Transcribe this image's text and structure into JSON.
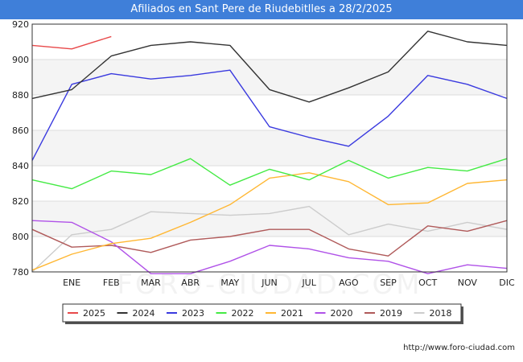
{
  "title": "Afiliados en Sant Pere de Riudebitlles a 28/2/2025",
  "source": "http://www.foro-ciudad.com",
  "watermark": "FORO-CIUDAD.COM",
  "chart_data": {
    "type": "line",
    "categories": [
      "",
      "ENE",
      "FEB",
      "MAR",
      "ABR",
      "MAY",
      "JUN",
      "JUL",
      "AGO",
      "SEP",
      "OCT",
      "NOV",
      "DIC"
    ],
    "ylim": [
      780,
      920
    ],
    "yticks": [
      780,
      800,
      820,
      840,
      860,
      880,
      900,
      920
    ],
    "grid": true,
    "legend_position": "bottom",
    "series": [
      {
        "name": "2025",
        "color": "#e8494a",
        "values": [
          908,
          906,
          913,
          null,
          null,
          null,
          null,
          null,
          null,
          null,
          null,
          null,
          null
        ]
      },
      {
        "name": "2024",
        "color": "#333333",
        "values": [
          878,
          883,
          902,
          908,
          910,
          908,
          883,
          876,
          884,
          893,
          916,
          910,
          908
        ]
      },
      {
        "name": "2023",
        "color": "#3a3adf",
        "values": [
          843,
          886,
          892,
          889,
          891,
          894,
          862,
          856,
          851,
          868,
          891,
          886,
          878
        ]
      },
      {
        "name": "2022",
        "color": "#44ea44",
        "values": [
          832,
          827,
          837,
          835,
          844,
          829,
          838,
          832,
          843,
          833,
          839,
          837,
          844
        ]
      },
      {
        "name": "2021",
        "color": "#ffb733",
        "values": [
          781,
          790,
          796,
          799,
          808,
          818,
          833,
          836,
          831,
          818,
          819,
          830,
          832
        ]
      },
      {
        "name": "2020",
        "color": "#b052e8",
        "values": [
          809,
          808,
          797,
          779,
          779,
          786,
          795,
          793,
          788,
          786,
          779,
          784,
          782
        ]
      },
      {
        "name": "2019",
        "color": "#b05a5a",
        "values": [
          804,
          794,
          795,
          791,
          798,
          800,
          804,
          804,
          793,
          789,
          806,
          803,
          809
        ]
      },
      {
        "name": "2018",
        "color": "#cccccc",
        "values": [
          780,
          801,
          804,
          814,
          813,
          812,
          813,
          817,
          801,
          807,
          803,
          808,
          804
        ]
      }
    ]
  }
}
